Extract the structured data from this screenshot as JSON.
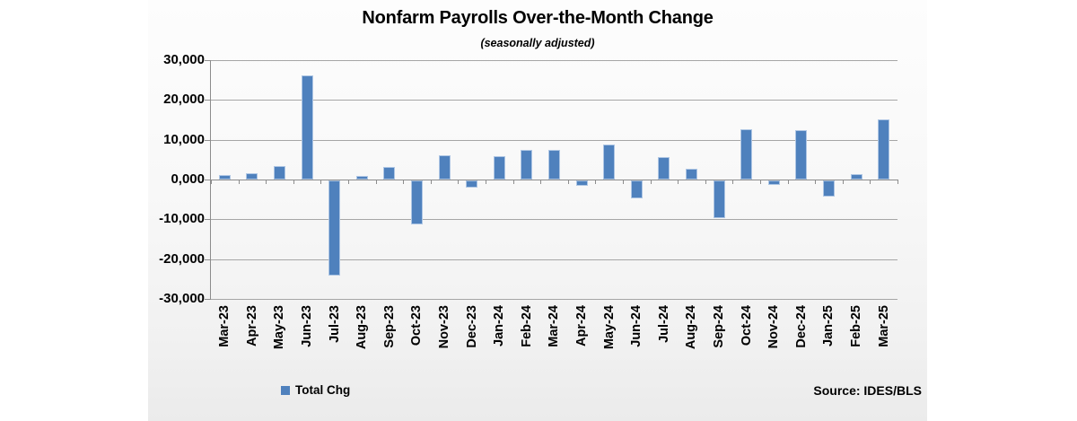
{
  "title": "Nonfarm Payrolls Over-the-Month Change",
  "subtitle": "(seasonally adjusted)",
  "legend": {
    "label": "Total Chg",
    "swatch_color": "#4f81bd"
  },
  "source": "Source: IDES/BLS",
  "chart_data": {
    "type": "bar",
    "title": "Nonfarm Payrolls Over-the-Month Change",
    "subtitle": "(seasonally adjusted)",
    "categories": [
      "Mar-23",
      "Apr-23",
      "May-23",
      "Jun-23",
      "Jul-23",
      "Aug-23",
      "Sep-23",
      "Oct-23",
      "Nov-23",
      "Dec-23",
      "Jan-24",
      "Feb-24",
      "Mar-24",
      "Apr-24",
      "May-24",
      "Jun-24",
      "Jul-24",
      "Aug-24",
      "Sep-24",
      "Oct-24",
      "Nov-24",
      "Dec-24",
      "Jan-25",
      "Feb-25",
      "Mar-25"
    ],
    "series": [
      {
        "name": "Total Chg",
        "values": [
          1100,
          1500,
          3300,
          26100,
          -23900,
          1000,
          3200,
          -11100,
          6000,
          -1800,
          5800,
          7500,
          7400,
          -1400,
          8900,
          -4400,
          5600,
          2700,
          -9400,
          12700,
          -1200,
          12400,
          -4100,
          1300,
          15100
        ]
      }
    ],
    "xlabel": "",
    "ylabel": "",
    "ylim": [
      -30000,
      30000
    ],
    "ytick_step": 10000,
    "ytick_labels": [
      "30,000",
      "20,000",
      "10,000",
      "0,000",
      "-10,000",
      "-20,000",
      "-30,000"
    ],
    "grid": true,
    "legend_position": "bottom-left",
    "bar_color": "#4f81bd",
    "bar_border_color": "#aec6e4",
    "gridline_color": "#a6a6a6",
    "axis_color": "#8c8c8c"
  }
}
